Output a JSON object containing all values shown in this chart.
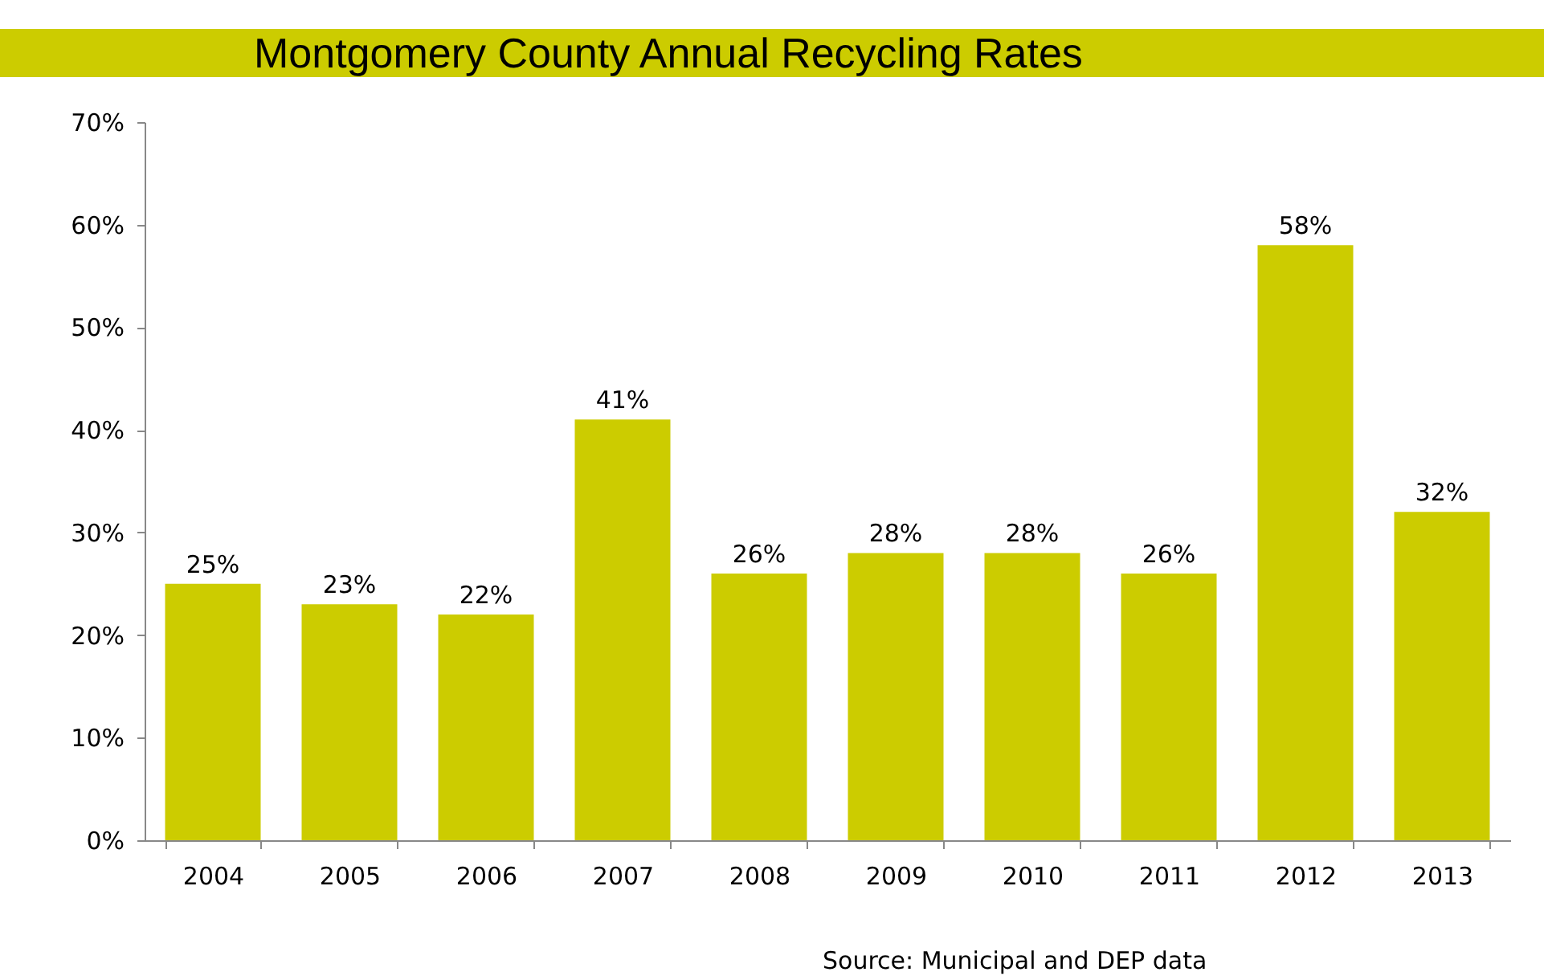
{
  "chart_data": {
    "type": "bar",
    "title": "Montgomery County Annual Recycling Rates",
    "categories": [
      "2004",
      "2005",
      "2006",
      "2007",
      "2008",
      "2009",
      "2010",
      "2011",
      "2012",
      "2013"
    ],
    "values": [
      25,
      23,
      22,
      41,
      26,
      28,
      28,
      26,
      58,
      32
    ],
    "value_labels": [
      "25%",
      "23%",
      "22%",
      "41%",
      "26%",
      "28%",
      "28%",
      "26%",
      "58%",
      "32%"
    ],
    "color": "#cccc00",
    "ylim": [
      0,
      70
    ],
    "yticks": [
      {
        "value": 0,
        "label": "0%"
      },
      {
        "value": 10,
        "label": "10%"
      },
      {
        "value": 20,
        "label": "20%"
      },
      {
        "value": 30,
        "label": "30%"
      },
      {
        "value": 40,
        "label": "40%"
      },
      {
        "value": 50,
        "label": "50%"
      },
      {
        "value": 60,
        "label": "60%"
      },
      {
        "value": 70,
        "label": "70%"
      }
    ],
    "grid": false,
    "annotations": [
      "Source: Municipal and DEP data"
    ]
  }
}
